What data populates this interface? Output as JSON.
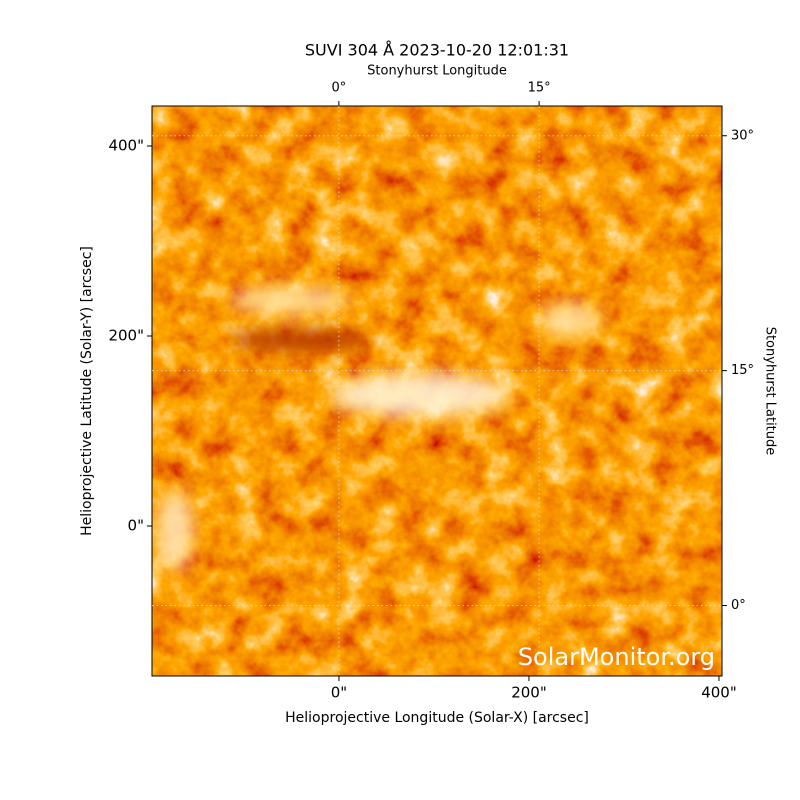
{
  "chart_data": {
    "type": "image",
    "title": "SUVI 304 Å 2023-10-20 12:01:31",
    "xlabel": "Helioprojective Longitude (Solar-X) [arcsec]",
    "ylabel": "Helioprojective Latitude (Solar-Y) [arcsec]",
    "x2label": "Stonyhurst Longitude",
    "y2label": "Stonyhurst Latitude",
    "watermark": "SolarMonitor.org",
    "xlim": [
      -196.8,
      403.2
    ],
    "ylim": [
      -157.9,
      442.1
    ],
    "xticks": [
      {
        "value": 0,
        "label": "0\""
      },
      {
        "value": 200,
        "label": "200\""
      },
      {
        "value": 400,
        "label": "400\""
      }
    ],
    "yticks": [
      {
        "value": 0,
        "label": "0\""
      },
      {
        "value": 200,
        "label": "200\""
      },
      {
        "value": 400,
        "label": "400\""
      }
    ],
    "x2lim": [
      -14.0,
      28.7
    ],
    "x2ticks": [
      {
        "value": 0,
        "label": "0°"
      },
      {
        "value": 15,
        "label": "15°"
      }
    ],
    "y2lim": [
      -4.5,
      31.9
    ],
    "y2ticks": [
      {
        "value": 0,
        "label": "0°"
      },
      {
        "value": 15,
        "label": "15°"
      },
      {
        "value": 30,
        "label": "30°"
      }
    ],
    "grid": true
  }
}
